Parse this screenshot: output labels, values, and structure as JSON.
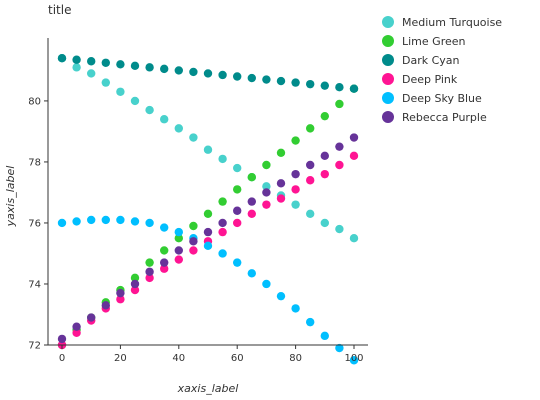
{
  "chart_data": {
    "type": "line",
    "title": "title",
    "xlabel": "xaxis_label",
    "ylabel": "yaxis_label",
    "xlim": [
      0,
      100
    ],
    "ylim": [
      72,
      81.8
    ],
    "xticks": [
      0,
      20,
      40,
      60,
      80,
      100
    ],
    "yticks": [
      72,
      74,
      76,
      78,
      80
    ],
    "grid": false,
    "legend_position": "right",
    "series": [
      {
        "name": "Medium Turquoise",
        "color": "#48D1CC",
        "x": [
          0,
          5,
          10,
          15,
          20,
          25,
          30,
          35,
          40,
          45,
          50,
          55,
          60,
          65,
          70,
          75,
          80,
          85,
          90,
          95,
          100
        ],
        "y": [
          81.4,
          81.1,
          80.9,
          80.6,
          80.3,
          80.0,
          79.7,
          79.4,
          79.1,
          78.8,
          78.4,
          78.1,
          77.8,
          77.5,
          77.2,
          76.9,
          76.6,
          76.3,
          76.0,
          75.8,
          75.5
        ]
      },
      {
        "name": "Lime Green",
        "color": "#32CD32",
        "x": [
          0,
          5,
          10,
          15,
          20,
          25,
          30,
          35,
          40,
          45,
          50,
          55,
          60,
          65,
          70,
          75,
          80,
          85,
          90,
          95,
          100
        ],
        "y": [
          72.0,
          72.5,
          72.9,
          73.4,
          73.8,
          74.2,
          74.7,
          75.1,
          75.5,
          75.9,
          76.3,
          76.7,
          77.1,
          77.5,
          77.9,
          78.3,
          78.7,
          79.1,
          79.5,
          79.9,
          80.4
        ]
      },
      {
        "name": "Dark Cyan",
        "color": "#008B8B",
        "x": [
          0,
          5,
          10,
          15,
          20,
          25,
          30,
          35,
          40,
          45,
          50,
          55,
          60,
          65,
          70,
          75,
          80,
          85,
          90,
          95,
          100
        ],
        "y": [
          81.4,
          81.35,
          81.3,
          81.25,
          81.2,
          81.15,
          81.1,
          81.05,
          81.0,
          80.95,
          80.9,
          80.85,
          80.8,
          80.75,
          80.7,
          80.65,
          80.6,
          80.55,
          80.5,
          80.45,
          80.4
        ]
      },
      {
        "name": "Deep Pink",
        "color": "#FF1493",
        "x": [
          0,
          5,
          10,
          15,
          20,
          25,
          30,
          35,
          40,
          45,
          50,
          55,
          60,
          65,
          70,
          75,
          80,
          85,
          90,
          95,
          100
        ],
        "y": [
          72.0,
          72.4,
          72.8,
          73.2,
          73.5,
          73.8,
          74.2,
          74.5,
          74.8,
          75.1,
          75.4,
          75.7,
          76.0,
          76.3,
          76.6,
          76.8,
          77.1,
          77.4,
          77.6,
          77.9,
          78.2
        ]
      },
      {
        "name": "Deep Sky Blue",
        "color": "#00BFFF",
        "x": [
          0,
          5,
          10,
          15,
          20,
          25,
          30,
          35,
          40,
          45,
          50,
          55,
          60,
          65,
          70,
          75,
          80,
          85,
          90,
          95,
          100
        ],
        "y": [
          76.0,
          76.05,
          76.1,
          76.1,
          76.1,
          76.05,
          76.0,
          75.85,
          75.7,
          75.5,
          75.25,
          75.0,
          74.7,
          74.35,
          74.0,
          73.6,
          73.2,
          72.75,
          72.3,
          71.9,
          71.5
        ]
      },
      {
        "name": "Rebecca Purple",
        "color": "#663399",
        "x": [
          0,
          5,
          10,
          15,
          20,
          25,
          30,
          35,
          40,
          45,
          50,
          55,
          60,
          65,
          70,
          75,
          80,
          85,
          90,
          95,
          100
        ],
        "y": [
          72.2,
          72.6,
          72.9,
          73.3,
          73.7,
          74.0,
          74.4,
          74.7,
          75.1,
          75.4,
          75.7,
          76.0,
          76.4,
          76.7,
          77.0,
          77.3,
          77.6,
          77.9,
          78.2,
          78.5,
          78.8
        ]
      }
    ]
  }
}
